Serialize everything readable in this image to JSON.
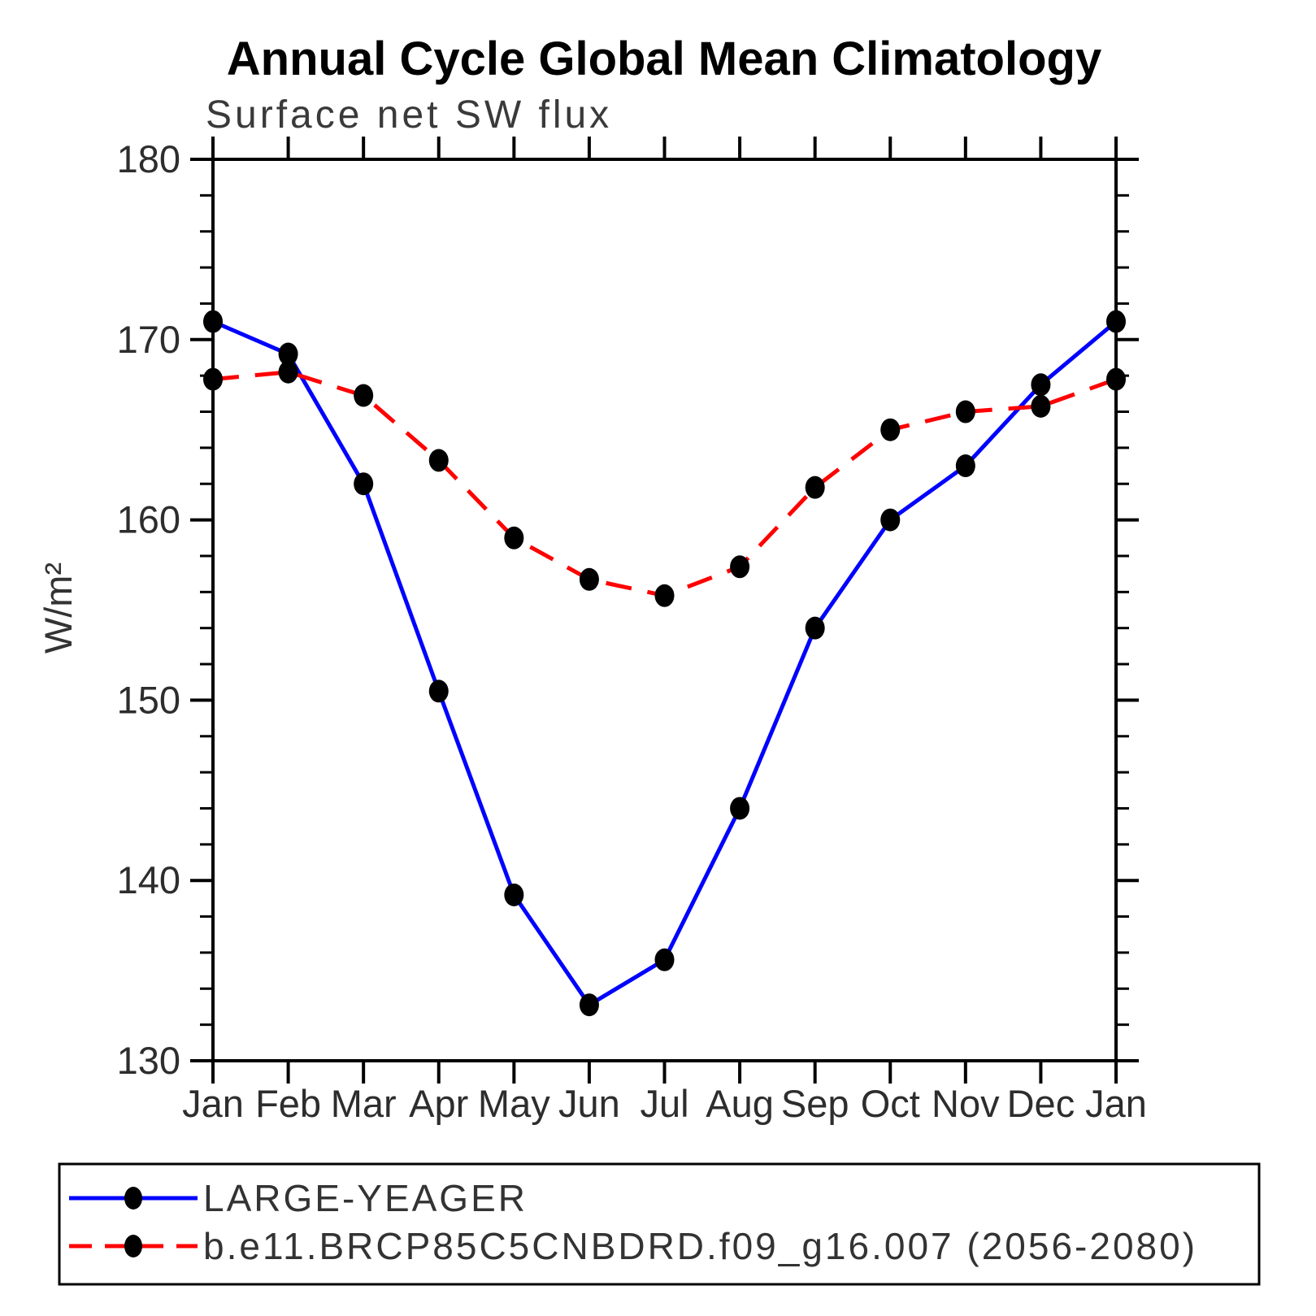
{
  "title": "Annual Cycle Global Mean Climatology",
  "subtitle": "Surface net SW flux",
  "ylabel": "W/m²",
  "legend": [
    {
      "label": "LARGE-YEAGER",
      "color": "#0000ff",
      "style": "solid"
    },
    {
      "label": "b.e11.BRCP85C5CNBDRD.f09_g16.007 (2056-2080)",
      "color": "#ff0000",
      "style": "dashed"
    }
  ],
  "chart_data": {
    "type": "line",
    "title": "Annual Cycle Global Mean Climatology",
    "subtitle": "Surface net SW flux",
    "xlabel": "",
    "ylabel": "W/m²",
    "x_tick_labels": [
      "Jan",
      "Feb",
      "Mar",
      "Apr",
      "May",
      "Jun",
      "Jul",
      "Aug",
      "Sep",
      "Oct",
      "Nov",
      "Dec",
      "Jan"
    ],
    "ylim": [
      130,
      180
    ],
    "y_major_ticks": [
      130,
      140,
      150,
      160,
      170,
      180
    ],
    "y_minor_step": 2,
    "grid": false,
    "legend_position": "bottom",
    "marker": "filled-circle",
    "marker_color": "#000000",
    "axis_color": "#000000",
    "series": [
      {
        "name": "LARGE-YEAGER",
        "color": "#0000ff",
        "line_style": "solid",
        "values": [
          171.0,
          169.2,
          162.0,
          150.5,
          139.2,
          133.1,
          135.6,
          144.0,
          154.0,
          160.0,
          163.0,
          167.5,
          171.0
        ]
      },
      {
        "name": "b.e11.BRCP85C5CNBDRD.f09_g16.007 (2056-2080)",
        "color": "#ff0000",
        "line_style": "dashed",
        "values": [
          167.8,
          168.2,
          166.9,
          163.3,
          159.0,
          156.7,
          155.8,
          157.4,
          161.8,
          165.0,
          166.0,
          166.3,
          167.8
        ]
      }
    ]
  }
}
